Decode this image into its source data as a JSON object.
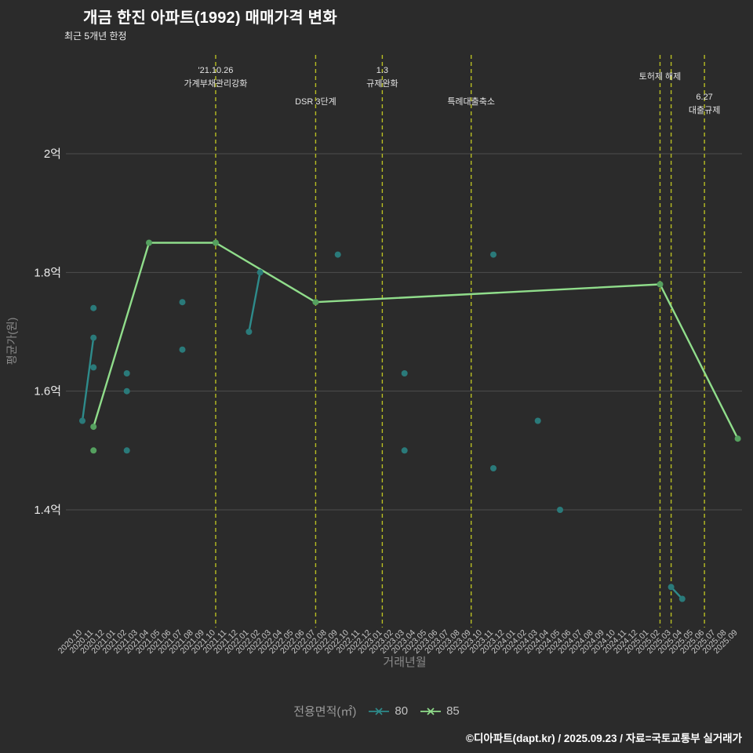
{
  "header": {
    "title": "개금 한진 아파트(1992) 매매가격 변화",
    "subtitle": "최근 5개년 한정"
  },
  "footer": {
    "credit": "©디아파트(dapt.kr) / 2025.09.23 / 자료=국토교통부 실거래가"
  },
  "legend": {
    "label": "전용면적(㎡)",
    "items": [
      {
        "name": "80",
        "color": "#2e8b8b"
      },
      {
        "name": "85",
        "color": "#90dd8b"
      }
    ]
  },
  "chart_data": {
    "type": "line",
    "title": "개금 한진 아파트(1992) 매매가격 변화",
    "subtitle": "최근 5개년 한정",
    "xlabel": "거래년월",
    "ylabel": "평균가(원)",
    "ylim": [
      1.2,
      2.17
    ],
    "grid": true,
    "grid_color": "#4d4d4d",
    "guide_color": "#b8be23",
    "y_ticks": [
      {
        "label": "2억",
        "value": 2.0
      },
      {
        "label": "1.8억",
        "value": 1.8
      },
      {
        "label": "1.6억",
        "value": 1.6
      },
      {
        "label": "1.4억",
        "value": 1.4
      }
    ],
    "x_categories": [
      "2020.10",
      "2020.11",
      "2020.12",
      "2021.01",
      "2021.02",
      "2021.03",
      "2021.04",
      "2021.05",
      "2021.06",
      "2021.07",
      "2021.08",
      "2021.09",
      "2021.10",
      "2021.11",
      "2021.12",
      "2022.01",
      "2022.02",
      "2022.03",
      "2022.04",
      "2022.05",
      "2022.06",
      "2022.07",
      "2022.08",
      "2022.09",
      "2022.10",
      "2022.11",
      "2022.12",
      "2023.01",
      "2023.02",
      "2023.03",
      "2023.04",
      "2023.05",
      "2023.06",
      "2023.07",
      "2023.08",
      "2023.09",
      "2023.10",
      "2023.11",
      "2023.12",
      "2024.01",
      "2024.02",
      "2024.03",
      "2024.04",
      "2024.05",
      "2024.06",
      "2024.07",
      "2024.08",
      "2024.09",
      "2024.10",
      "2024.11",
      "2024.12",
      "2025.01",
      "2025.02",
      "2025.03",
      "2025.04",
      "2025.05",
      "2025.06",
      "2025.07",
      "2025.08",
      "2025.09"
    ],
    "series": [
      {
        "name": "80",
        "color": "#2e8b8b",
        "point_color": "#2a7a7a",
        "segments": [
          [
            [
              "2020.10",
              1.55
            ],
            [
              "2020.11",
              1.69
            ]
          ],
          [
            [
              "2022.01",
              1.7
            ],
            [
              "2022.02",
              1.8
            ]
          ],
          [
            [
              "2025.03",
              1.27
            ],
            [
              "2025.04",
              1.25
            ]
          ]
        ],
        "points": [
          [
            "2020.10",
            1.55
          ],
          [
            "2020.11",
            1.74
          ],
          [
            "2020.11",
            1.69
          ],
          [
            "2020.11",
            1.64
          ],
          [
            "2021.02",
            1.63
          ],
          [
            "2021.02",
            1.6
          ],
          [
            "2021.02",
            1.5
          ],
          [
            "2021.07",
            1.75
          ],
          [
            "2021.07",
            1.67
          ],
          [
            "2022.01",
            1.7
          ],
          [
            "2022.02",
            1.8
          ],
          [
            "2022.09",
            1.83
          ],
          [
            "2023.03",
            1.63
          ],
          [
            "2023.03",
            1.5
          ],
          [
            "2023.11",
            1.83
          ],
          [
            "2023.11",
            1.47
          ],
          [
            "2024.03",
            1.55
          ],
          [
            "2024.05",
            1.4
          ],
          [
            "2025.03",
            1.27
          ],
          [
            "2025.04",
            1.25
          ]
        ]
      },
      {
        "name": "85",
        "color": "#90dd8b",
        "point_color": "#55a05f",
        "segments": [
          [
            [
              "2020.11",
              1.54
            ],
            [
              "2021.04",
              1.85
            ],
            [
              "2021.10",
              1.85
            ],
            [
              "2022.07",
              1.75
            ],
            [
              "2025.02",
              1.78
            ],
            [
              "2025.09",
              1.52
            ]
          ]
        ],
        "points": [
          [
            "2020.11",
            1.54
          ],
          [
            "2020.11",
            1.5
          ],
          [
            "2021.04",
            1.85
          ],
          [
            "2021.10",
            1.85
          ],
          [
            "2022.07",
            1.75
          ],
          [
            "2025.02",
            1.78
          ],
          [
            "2025.09",
            1.52
          ]
        ]
      }
    ],
    "annotations": [
      {
        "x": "2021.10",
        "lines": [
          "'21.10.26",
          "가계부채관리강화"
        ],
        "level": "high"
      },
      {
        "x": "2022.07",
        "lines": [
          "DSR 3단계"
        ],
        "level": "low"
      },
      {
        "x": "2023.01",
        "lines": [
          "1.3",
          "규제완화"
        ],
        "level": "high"
      },
      {
        "x": "2023.09",
        "lines": [
          "특례대출축소"
        ],
        "level": "low"
      },
      {
        "x": "2025.02",
        "lines": [
          "토허제 해제"
        ],
        "level": "high"
      },
      {
        "x": "2025.03",
        "lines": [],
        "level": "high"
      },
      {
        "x": "2025.06",
        "lines": [
          "6.27",
          "대출규제"
        ],
        "level": "low"
      }
    ]
  }
}
